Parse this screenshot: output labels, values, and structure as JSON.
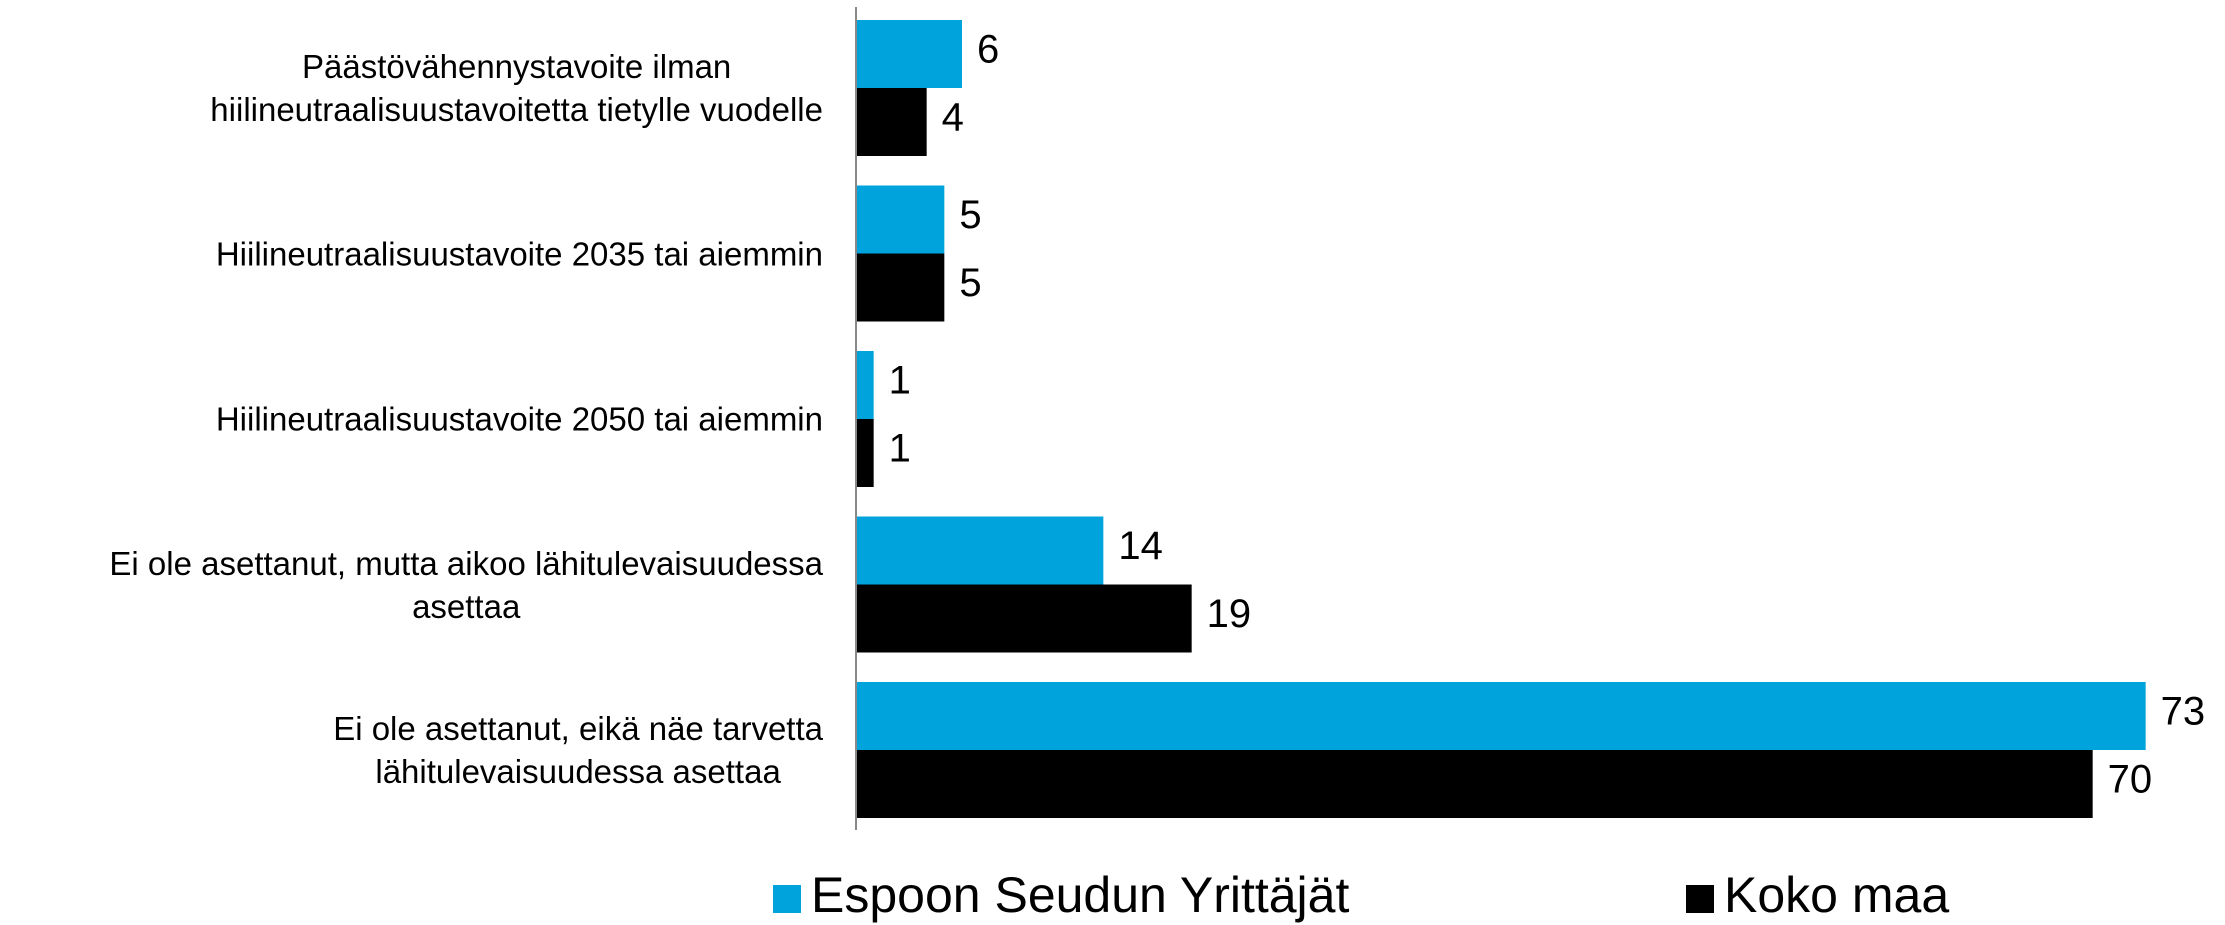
{
  "chart_data": {
    "type": "hbar",
    "categories": [
      "Päästövähennystavoite ilman\nhiilineutraalisuustavoitetta tietylle vuodelle",
      "Hiilineutraalisuustavoite 2035 tai aiemmin",
      "Hiilineutraalisuustavoite 2050 tai aiemmin",
      "Ei ole asettanut, mutta aikoo lähitulevaisuudessa\nasettaa",
      "Ei ole asettanut, eikä näe tarvetta\nlähitulevaisuudessa asettaa"
    ],
    "series": [
      {
        "name": "Espoon Seudun Yrittäjät",
        "color": "#00a3dc",
        "values": [
          6,
          5,
          1,
          14,
          73
        ]
      },
      {
        "name": "Koko maa",
        "color": "#000000",
        "values": [
          4,
          5,
          1,
          19,
          70
        ]
      }
    ],
    "xlim": [
      0,
      75
    ],
    "legend": "bottom"
  }
}
